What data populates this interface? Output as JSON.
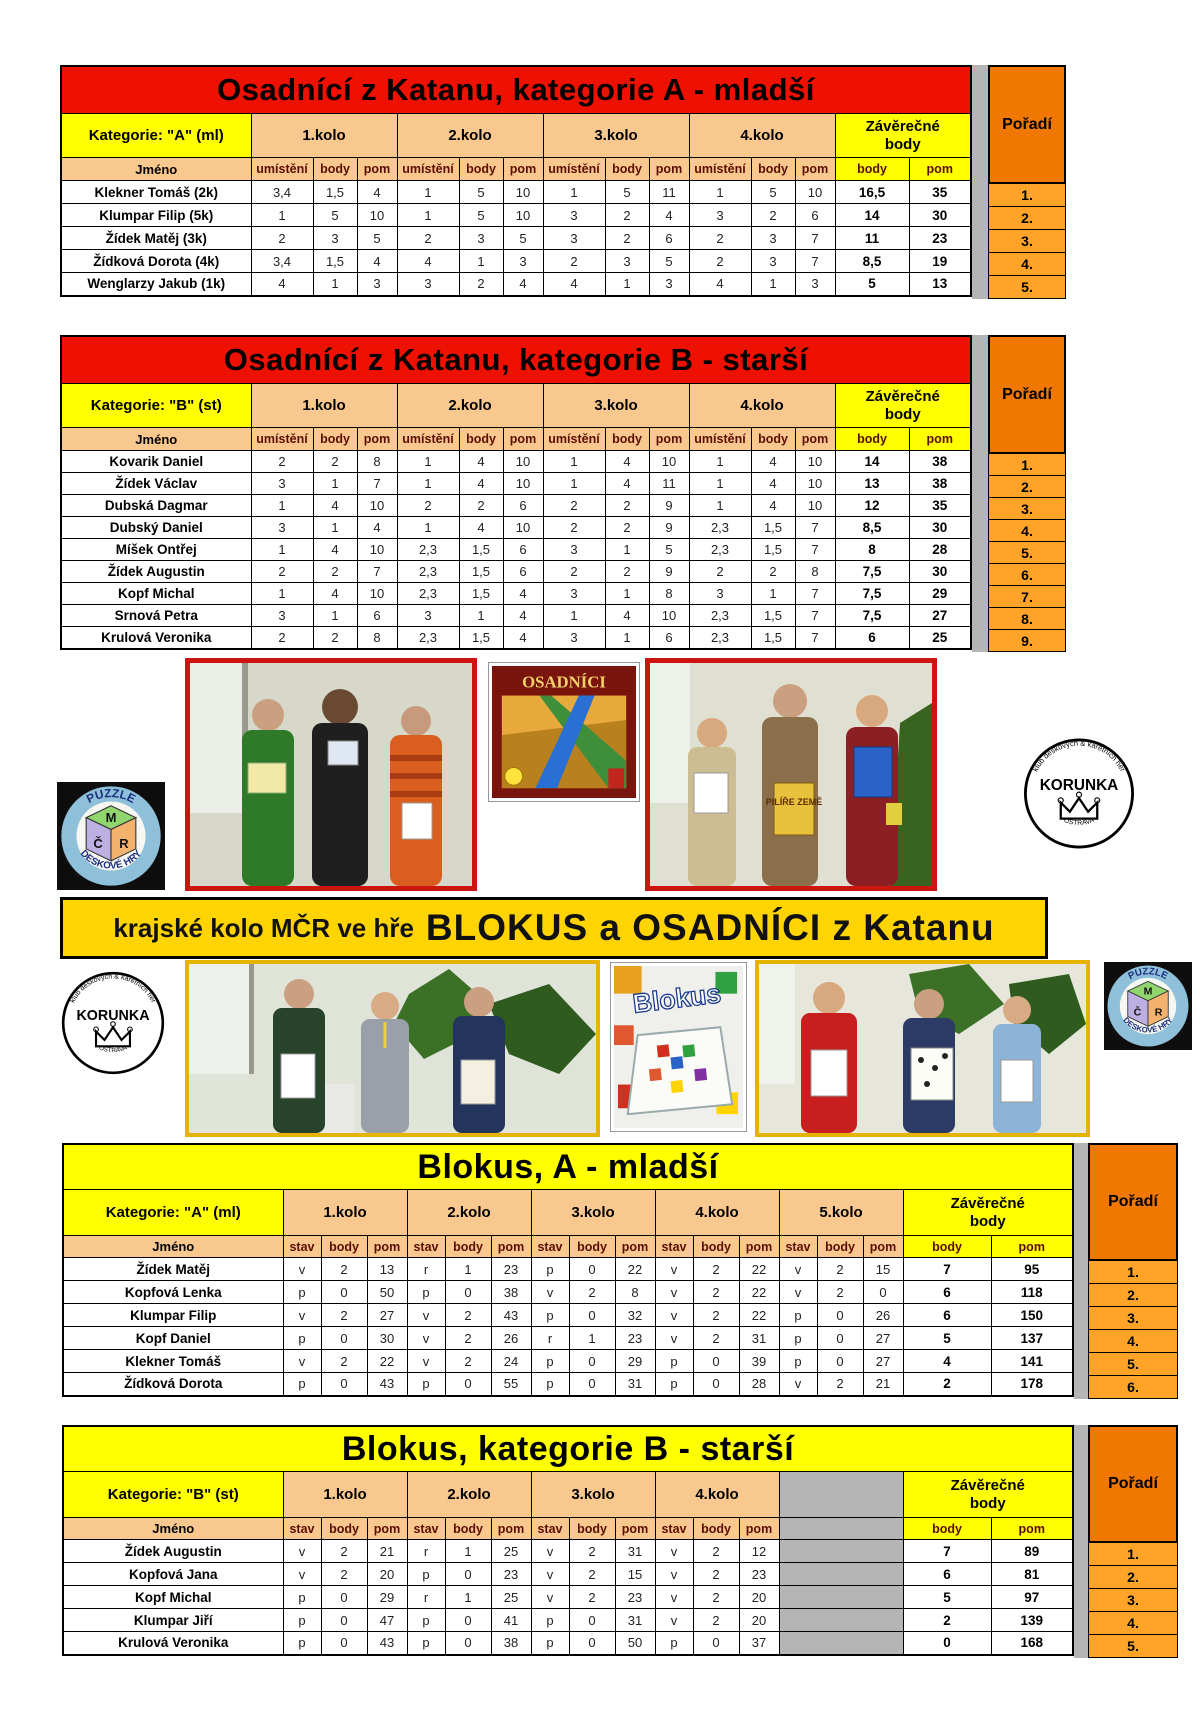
{
  "colors": {
    "red": "#ee1000",
    "yellow": "#ffff00",
    "peach": "#f9c88f",
    "orange_head": "#f07800",
    "orange_cell": "#ffa428",
    "gray": "#b5b5b5",
    "banner_yellow": "#ffd400"
  },
  "banner": {
    "prefix": "krajské kolo MČR ve hře",
    "main": "BLOKUS a OSADNÍCI z Katanu"
  },
  "logos": {
    "mcr": {
      "top": "PUZZLE",
      "bottom": "DESKOVÉ HRY",
      "cube_m": "M",
      "cube_c": "Č",
      "cube_r": "R"
    },
    "korunka": {
      "around": "klub deskových & karetních her",
      "name": "KORUNKA",
      "city": "OSTRAVA"
    }
  },
  "boxes": {
    "osadnici": {
      "title": "OSADNÍCI"
    },
    "blokus": {
      "title": "Blokus"
    },
    "pilire": {
      "title": "PILÍŘE ZEMĚ"
    }
  },
  "tables": [
    {
      "title": "Osadnící z Katanu, kategorie A - mladší",
      "style": "red",
      "category": "Kategorie:   \"A\" (ml)",
      "name_header": "Jméno",
      "rounds": [
        "1.kolo",
        "2.kolo",
        "3.kolo",
        "4.kolo"
      ],
      "subcols": [
        "umístění",
        "body",
        "pom"
      ],
      "final_header": "Závěrečné body",
      "final_subcols": [
        "body",
        "pom"
      ],
      "rank_header": "Pořadí",
      "rows": [
        {
          "name": "Klekner Tomáš (2k)",
          "cells": [
            "3,4",
            "1,5",
            "4",
            "1",
            "5",
            "10",
            "1",
            "5",
            "11",
            "1",
            "5",
            "10"
          ],
          "final": [
            "16,5",
            "35"
          ],
          "rank": "1."
        },
        {
          "name": "Klumpar Filip (5k)",
          "cells": [
            "1",
            "5",
            "10",
            "1",
            "5",
            "10",
            "3",
            "2",
            "4",
            "3",
            "2",
            "6"
          ],
          "final": [
            "14",
            "30"
          ],
          "rank": "2."
        },
        {
          "name": "Žídek Matěj (3k)",
          "cells": [
            "2",
            "3",
            "5",
            "2",
            "3",
            "5",
            "3",
            "2",
            "6",
            "2",
            "3",
            "7"
          ],
          "final": [
            "11",
            "23"
          ],
          "rank": "3."
        },
        {
          "name": "Žídková Dorota (4k)",
          "cells": [
            "3,4",
            "1,5",
            "4",
            "4",
            "1",
            "3",
            "2",
            "3",
            "5",
            "2",
            "3",
            "7"
          ],
          "final": [
            "8,5",
            "19"
          ],
          "rank": "4."
        },
        {
          "name": "Wenglarzy Jakub (1k)",
          "cells": [
            "4",
            "1",
            "3",
            "3",
            "2",
            "4",
            "4",
            "1",
            "3",
            "4",
            "1",
            "3"
          ],
          "final": [
            "5",
            "13"
          ],
          "rank": "5."
        }
      ]
    },
    {
      "title": "Osadnící z Katanu, kategorie B - starší",
      "style": "red",
      "category": "Kategorie:   \"B\" (st)",
      "name_header": "Jméno",
      "rounds": [
        "1.kolo",
        "2.kolo",
        "3.kolo",
        "4.kolo"
      ],
      "subcols": [
        "umístění",
        "body",
        "pom"
      ],
      "final_header": "Závěrečné body",
      "final_subcols": [
        "body",
        "pom"
      ],
      "rank_header": "Pořadí",
      "rows": [
        {
          "name": "Kovarik Daniel",
          "cells": [
            "2",
            "2",
            "8",
            "1",
            "4",
            "10",
            "1",
            "4",
            "10",
            "1",
            "4",
            "10"
          ],
          "final": [
            "14",
            "38"
          ],
          "rank": "1."
        },
        {
          "name": "Žídek Václav",
          "cells": [
            "3",
            "1",
            "7",
            "1",
            "4",
            "10",
            "1",
            "4",
            "11",
            "1",
            "4",
            "10"
          ],
          "final": [
            "13",
            "38"
          ],
          "rank": "2."
        },
        {
          "name": "Dubská Dagmar",
          "cells": [
            "1",
            "4",
            "10",
            "2",
            "2",
            "6",
            "2",
            "2",
            "9",
            "1",
            "4",
            "10"
          ],
          "final": [
            "12",
            "35"
          ],
          "rank": "3."
        },
        {
          "name": "Dubský Daniel",
          "cells": [
            "3",
            "1",
            "4",
            "1",
            "4",
            "10",
            "2",
            "2",
            "9",
            "2,3",
            "1,5",
            "7"
          ],
          "final": [
            "8,5",
            "30"
          ],
          "rank": "4."
        },
        {
          "name": "Míšek Ontřej",
          "cells": [
            "1",
            "4",
            "10",
            "2,3",
            "1,5",
            "6",
            "3",
            "1",
            "5",
            "2,3",
            "1,5",
            "7"
          ],
          "final": [
            "8",
            "28"
          ],
          "rank": "5."
        },
        {
          "name": "Žídek Augustin",
          "cells": [
            "2",
            "2",
            "7",
            "2,3",
            "1,5",
            "6",
            "2",
            "2",
            "9",
            "2",
            "2",
            "8"
          ],
          "final": [
            "7,5",
            "30"
          ],
          "rank": "6."
        },
        {
          "name": "Kopf Michal",
          "cells": [
            "1",
            "4",
            "10",
            "2,3",
            "1,5",
            "4",
            "3",
            "1",
            "8",
            "3",
            "1",
            "7"
          ],
          "final": [
            "7,5",
            "29"
          ],
          "rank": "7."
        },
        {
          "name": "Srnová Petra",
          "cells": [
            "3",
            "1",
            "6",
            "3",
            "1",
            "4",
            "1",
            "4",
            "10",
            "2,3",
            "1,5",
            "7"
          ],
          "final": [
            "7,5",
            "27"
          ],
          "rank": "8."
        },
        {
          "name": "Krulová Veronika",
          "cells": [
            "2",
            "2",
            "8",
            "2,3",
            "1,5",
            "4",
            "3",
            "1",
            "6",
            "2,3",
            "1,5",
            "7"
          ],
          "final": [
            "6",
            "25"
          ],
          "rank": "9."
        }
      ]
    },
    {
      "title": "Blokus, A - mladší",
      "style": "yellow",
      "category": "Kategorie:   \"A\" (ml)",
      "name_header": "Jméno",
      "rounds": [
        "1.kolo",
        "2.kolo",
        "3.kolo",
        "4.kolo",
        "5.kolo"
      ],
      "subcols": [
        "stav",
        "body",
        "pom"
      ],
      "final_header": "Závěrečné body",
      "final_subcols": [
        "body",
        "pom"
      ],
      "rank_header": "Pořadí",
      "rows": [
        {
          "name": "Žídek Matěj",
          "cells": [
            "v",
            "2",
            "13",
            "r",
            "1",
            "23",
            "p",
            "0",
            "22",
            "v",
            "2",
            "22",
            "v",
            "2",
            "15"
          ],
          "final": [
            "7",
            "95"
          ],
          "rank": "1."
        },
        {
          "name": "Kopfová Lenka",
          "cells": [
            "p",
            "0",
            "50",
            "p",
            "0",
            "38",
            "v",
            "2",
            "8",
            "v",
            "2",
            "22",
            "v",
            "2",
            "0"
          ],
          "final": [
            "6",
            "118"
          ],
          "rank": "2."
        },
        {
          "name": "Klumpar Filip",
          "cells": [
            "v",
            "2",
            "27",
            "v",
            "2",
            "43",
            "p",
            "0",
            "32",
            "v",
            "2",
            "22",
            "p",
            "0",
            "26"
          ],
          "final": [
            "6",
            "150"
          ],
          "rank": "3."
        },
        {
          "name": "Kopf Daniel",
          "cells": [
            "p",
            "0",
            "30",
            "v",
            "2",
            "26",
            "r",
            "1",
            "23",
            "v",
            "2",
            "31",
            "p",
            "0",
            "27"
          ],
          "final": [
            "5",
            "137"
          ],
          "rank": "4."
        },
        {
          "name": "Klekner Tomáš",
          "cells": [
            "v",
            "2",
            "22",
            "v",
            "2",
            "24",
            "p",
            "0",
            "29",
            "p",
            "0",
            "39",
            "p",
            "0",
            "27"
          ],
          "final": [
            "4",
            "141"
          ],
          "rank": "5."
        },
        {
          "name": "Žídková Dorota",
          "cells": [
            "p",
            "0",
            "43",
            "p",
            "0",
            "55",
            "p",
            "0",
            "31",
            "p",
            "0",
            "28",
            "v",
            "2",
            "21"
          ],
          "final": [
            "2",
            "178"
          ],
          "rank": "6."
        }
      ]
    },
    {
      "title": "Blokus, kategorie B - starší",
      "style": "yellow",
      "category": "Kategorie:   \"B\" (st)",
      "name_header": "Jméno",
      "rounds": [
        "1.kolo",
        "2.kolo",
        "3.kolo",
        "4.kolo"
      ],
      "subcols": [
        "stav",
        "body",
        "pom"
      ],
      "final_header": "Závěrečné body",
      "final_subcols": [
        "body",
        "pom"
      ],
      "rank_header": "Pořadí",
      "rows": [
        {
          "name": "Žídek Augustin",
          "cells": [
            "v",
            "2",
            "21",
            "r",
            "1",
            "25",
            "v",
            "2",
            "31",
            "v",
            "2",
            "12"
          ],
          "final": [
            "7",
            "89"
          ],
          "rank": "1."
        },
        {
          "name": "Kopfová Jana",
          "cells": [
            "v",
            "2",
            "20",
            "p",
            "0",
            "23",
            "v",
            "2",
            "15",
            "v",
            "2",
            "23"
          ],
          "final": [
            "6",
            "81"
          ],
          "rank": "2."
        },
        {
          "name": "Kopf Michal",
          "cells": [
            "p",
            "0",
            "29",
            "r",
            "1",
            "25",
            "v",
            "2",
            "23",
            "v",
            "2",
            "20"
          ],
          "final": [
            "5",
            "97"
          ],
          "rank": "3."
        },
        {
          "name": "Klumpar Jiří",
          "cells": [
            "p",
            "0",
            "47",
            "p",
            "0",
            "41",
            "p",
            "0",
            "31",
            "v",
            "2",
            "20"
          ],
          "final": [
            "2",
            "139"
          ],
          "rank": "4."
        },
        {
          "name": "Krulová Veronika",
          "cells": [
            "p",
            "0",
            "43",
            "p",
            "0",
            "38",
            "p",
            "0",
            "50",
            "p",
            "0",
            "37"
          ],
          "final": [
            "0",
            "168"
          ],
          "rank": "5."
        }
      ]
    }
  ]
}
